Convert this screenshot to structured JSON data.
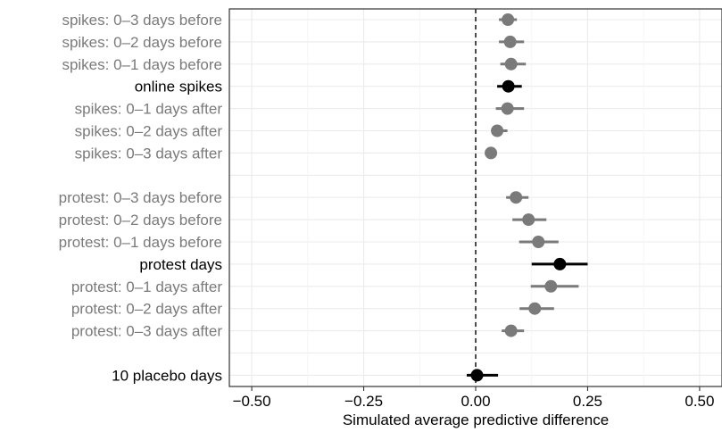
{
  "chart_data": {
    "type": "scatter",
    "subtype": "coefficient-plot",
    "title": "",
    "xlabel": "Simulated average predictive difference",
    "ylabel": "",
    "xlim": [
      -0.55,
      0.55
    ],
    "x_ticks": [
      -0.5,
      -0.25,
      0,
      0.25,
      0.5
    ],
    "x_tick_labels": [
      "−0.50",
      "−0.25",
      "0.00",
      "0.25",
      "0.50"
    ],
    "reference_line": 0,
    "grid": true,
    "colors": {
      "main": "#000000",
      "secondary": "#7a7a7a",
      "grid": "#ebebeb"
    },
    "rows": [
      {
        "label": "spikes: 0–3 days before",
        "estimate": 0.072,
        "lower": 0.052,
        "upper": 0.092,
        "main": false
      },
      {
        "label": "spikes: 0–2 days before",
        "estimate": 0.077,
        "lower": 0.052,
        "upper": 0.108,
        "main": false
      },
      {
        "label": "spikes: 0–1 days before",
        "estimate": 0.079,
        "lower": 0.055,
        "upper": 0.112,
        "main": false
      },
      {
        "label": "online spikes",
        "estimate": 0.073,
        "lower": 0.048,
        "upper": 0.103,
        "main": true
      },
      {
        "label": "spikes: 0–1 days after",
        "estimate": 0.071,
        "lower": 0.045,
        "upper": 0.108,
        "main": false
      },
      {
        "label": "spikes: 0–2 days after",
        "estimate": 0.048,
        "lower": 0.035,
        "upper": 0.071,
        "main": false
      },
      {
        "label": "spikes: 0–3 days after",
        "estimate": 0.034,
        "lower": 0.026,
        "upper": 0.045,
        "main": false
      },
      {
        "label": "",
        "estimate": null,
        "lower": null,
        "upper": null,
        "main": false
      },
      {
        "label": "protest: 0–3 days before",
        "estimate": 0.09,
        "lower": 0.068,
        "upper": 0.118,
        "main": false
      },
      {
        "label": "protest: 0–2 days before",
        "estimate": 0.118,
        "lower": 0.082,
        "upper": 0.158,
        "main": false
      },
      {
        "label": "protest: 0–1 days before",
        "estimate": 0.14,
        "lower": 0.097,
        "upper": 0.185,
        "main": false
      },
      {
        "label": "protest days",
        "estimate": 0.188,
        "lower": 0.125,
        "upper": 0.25,
        "main": true
      },
      {
        "label": "protest: 0–1 days after",
        "estimate": 0.168,
        "lower": 0.123,
        "upper": 0.23,
        "main": false
      },
      {
        "label": "protest: 0–2 days after",
        "estimate": 0.132,
        "lower": 0.098,
        "upper": 0.175,
        "main": false
      },
      {
        "label": "protest: 0–3 days after",
        "estimate": 0.079,
        "lower": 0.058,
        "upper": 0.108,
        "main": false
      },
      {
        "label": "",
        "estimate": null,
        "lower": null,
        "upper": null,
        "main": false
      },
      {
        "label": "10 placebo days",
        "estimate": 0.003,
        "lower": -0.02,
        "upper": 0.05,
        "main": true
      }
    ]
  }
}
